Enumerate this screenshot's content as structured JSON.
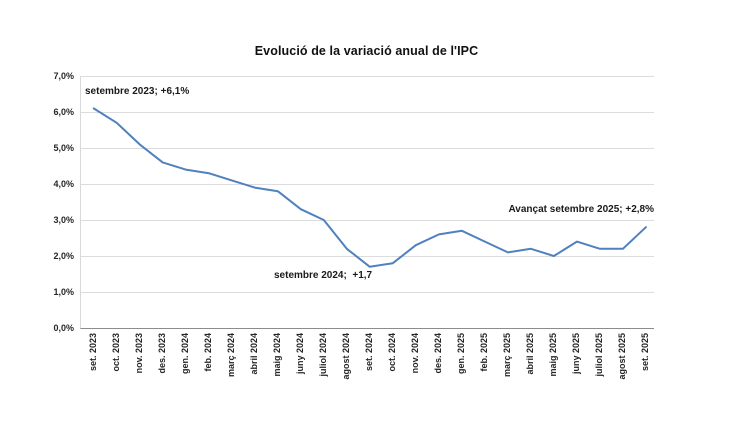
{
  "page": {
    "background": "#ffffff"
  },
  "chart": {
    "title": "Evolució de la variació anual de l'IPC",
    "annotations": [
      {
        "name": "setembre-2023",
        "text": "setembre 2023; +6,1%"
      },
      {
        "name": "setembre-2024",
        "text": "setembre 2024;  +1,7"
      },
      {
        "name": "avancat-setembre-2025",
        "text": "Avançat setembre 2025; +2,8%"
      }
    ]
  },
  "chart_data": {
    "type": "line",
    "title": "Evolució de la variació anual de l'IPC",
    "categories": [
      "set. 2023",
      "oct. 2023",
      "nov. 2023",
      "des. 2023",
      "gen. 2024",
      "feb. 2024",
      "març 2024",
      "abril 2024",
      "maig 2024",
      "juny 2024",
      "juliol 2024",
      "agost 2024",
      "set. 2024",
      "oct. 2024",
      "nov. 2024",
      "des. 2024",
      "gen. 2025",
      "feb. 2025",
      "març 2025",
      "abril 2025",
      "maig 2025",
      "juny 2025",
      "juliol 2025",
      "agost 2025",
      "set. 2025"
    ],
    "values": [
      6.1,
      5.7,
      5.1,
      4.6,
      4.4,
      4.3,
      4.1,
      3.9,
      3.8,
      3.3,
      3.0,
      2.2,
      1.7,
      1.8,
      2.3,
      2.6,
      2.7,
      2.4,
      2.1,
      2.2,
      2.0,
      2.4,
      2.2,
      2.2,
      2.8
    ],
    "y_ticks": [
      "7,0%",
      "6,0%",
      "5,0%",
      "4,0%",
      "3,0%",
      "2,0%",
      "1,0%",
      "0,0%"
    ],
    "ylim": [
      0,
      7
    ],
    "y_step": 1,
    "grid": true,
    "legend": "none",
    "line_color": "#4F81BD",
    "xlabel": "",
    "ylabel": ""
  }
}
